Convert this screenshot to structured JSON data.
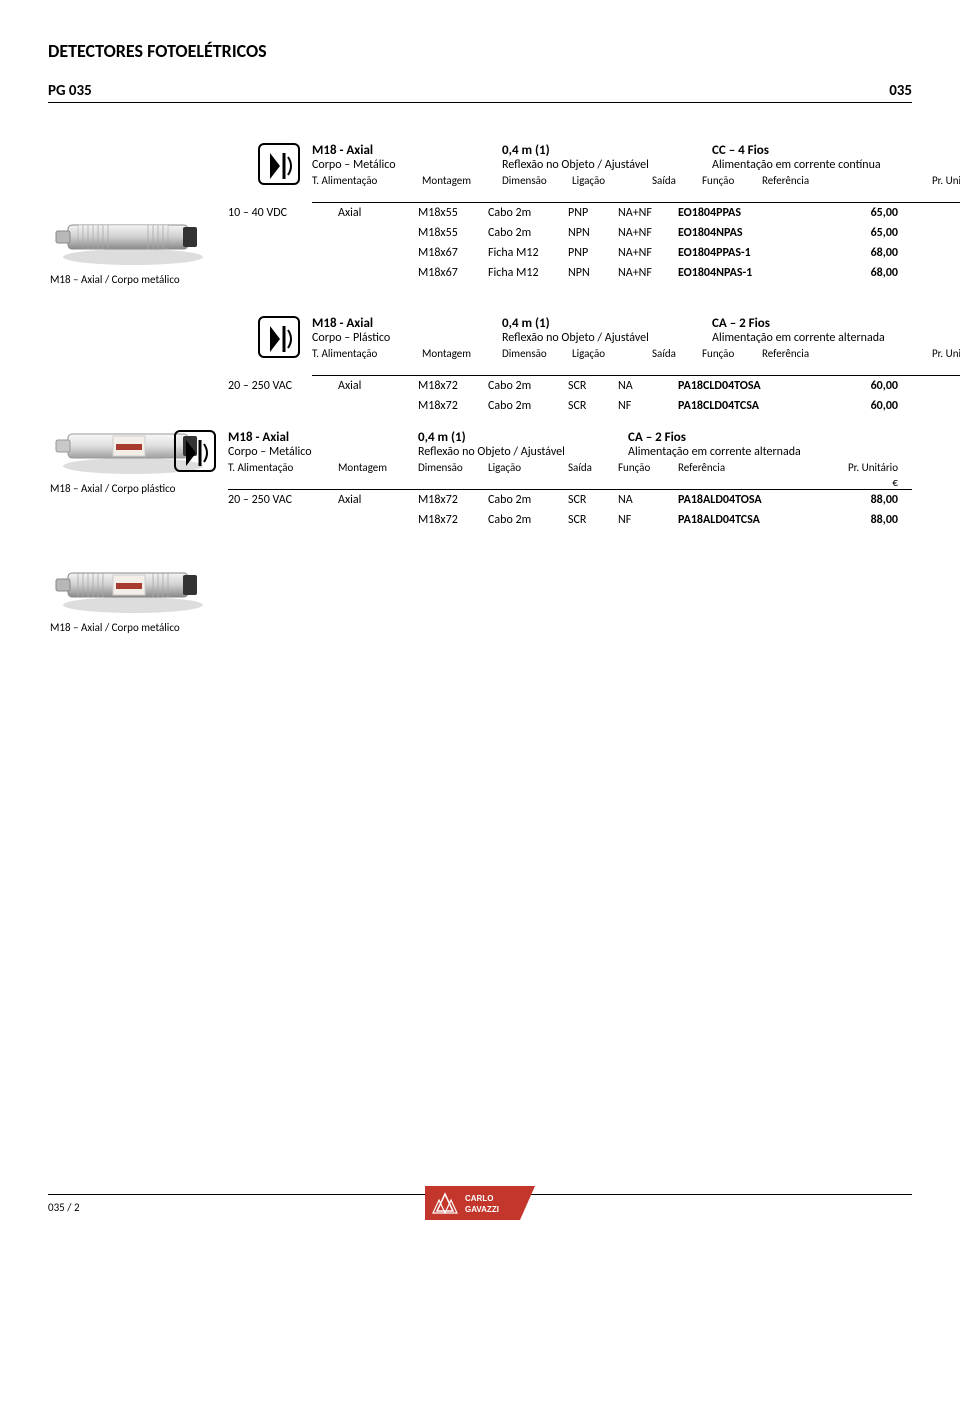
{
  "doc": {
    "title": "DETECTORES FOTOELÉTRICOS",
    "pg_left": "PG 035",
    "pg_right": "035",
    "footer_pg": "035 / 2",
    "footer_logo": "CARLO GAVAZZI"
  },
  "columns": {
    "alimentacao": "T. Alimentação",
    "montagem": "Montagem",
    "dimensao": "Dimensão",
    "ligacao": "Ligação",
    "saida": "Saída",
    "funcao": "Função",
    "referencia": "Referência",
    "preco": "Pr. Unitário",
    "euro": "€"
  },
  "section1": {
    "title": "M18 - Axial",
    "sub1": "Corpo  – Metálico",
    "col2a": "0,4 m (1)",
    "col2b": "Reflexão no Objeto / Ajustável",
    "col3a": "CC – 4 Fios",
    "col3b": "Alimentação em corrente contínua",
    "caption": "M18 – Axial / Corpo metálico",
    "rows": [
      {
        "al": "10 – 40 VDC",
        "mo": "Axial",
        "di": "M18x55",
        "li": "Cabo 2m",
        "sa": "PNP",
        "fu": "NA+NF",
        "ref": "EO1804PPAS",
        "pr": "65,00"
      },
      {
        "al": "",
        "mo": "",
        "di": "M18x55",
        "li": "Cabo 2m",
        "sa": "NPN",
        "fu": "NA+NF",
        "ref": "EO1804NPAS",
        "pr": "65,00"
      },
      {
        "al": "",
        "mo": "",
        "di": "M18x67",
        "li": "Ficha M12",
        "sa": "PNP",
        "fu": "NA+NF",
        "ref": "EO1804PPAS-1",
        "pr": "68,00"
      },
      {
        "al": "",
        "mo": "",
        "di": "M18x67",
        "li": "Ficha M12",
        "sa": "NPN",
        "fu": "NA+NF",
        "ref": "EO1804NPAS-1",
        "pr": "68,00"
      }
    ]
  },
  "section2": {
    "title": "M18 - Axial",
    "sub1": "Corpo  – Plástico",
    "col2a": "0,4 m (1)",
    "col2b": "Reflexão no Objeto / Ajustável",
    "col3a": "CA – 2 Fios",
    "col3b": "Alimentação em corrente alternada",
    "caption": "M18 – Axial / Corpo plástico",
    "rows": [
      {
        "al": "20 – 250 VAC",
        "mo": "Axial",
        "di": "M18x72",
        "li": "Cabo 2m",
        "sa": "SCR",
        "fu": "NA",
        "ref": "PA18CLD04TOSA",
        "pr": "60,00"
      },
      {
        "al": "",
        "mo": "",
        "di": "M18x72",
        "li": "Cabo 2m",
        "sa": "SCR",
        "fu": "NF",
        "ref": "PA18CLD04TCSA",
        "pr": "60,00"
      }
    ]
  },
  "section3": {
    "title": "M18 - Axial",
    "sub1": "Corpo  – Metálico",
    "col2a": "0,4 m (1)",
    "col2b": "Reflexão no Objeto / Ajustável",
    "col3a": "CA – 2 Fios",
    "col3b": "Alimentação em corrente alternada",
    "caption": "M18 – Axial / Corpo metálico",
    "rows": [
      {
        "al": "20 – 250 VAC",
        "mo": "Axial",
        "di": "M18x72",
        "li": "Cabo 2m",
        "sa": "SCR",
        "fu": "NA",
        "ref": "PA18ALD04TOSA",
        "pr": "88,00"
      },
      {
        "al": "",
        "mo": "",
        "di": "M18x72",
        "li": "Cabo 2m",
        "sa": "SCR",
        "fu": "NF",
        "ref": "PA18ALD04TCSA",
        "pr": "88,00"
      }
    ]
  },
  "colors": {
    "text": "#000000",
    "bg": "#ffffff",
    "sensor_body": "#cfcfcf",
    "sensor_shadow": "#9a9a9a",
    "sensor_front": "#333333",
    "label_red": "#a83a2e",
    "logo_bg": "#c3362c",
    "logo_text": "#ffffff"
  }
}
